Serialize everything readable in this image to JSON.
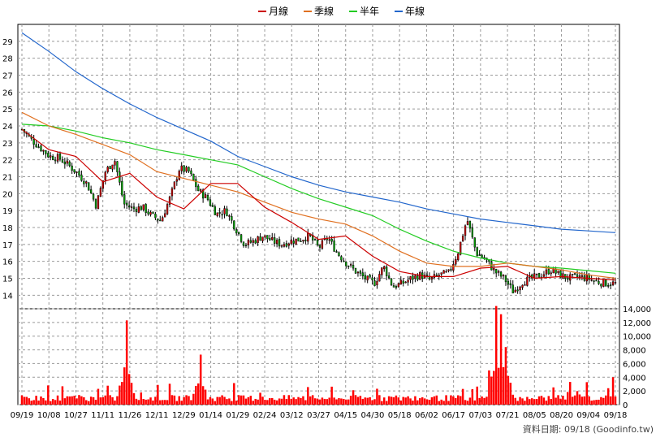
{
  "chart_data": {
    "type": "line",
    "legend": [
      {
        "name": "月線",
        "color": "#cc0000"
      },
      {
        "name": "季線",
        "color": "#e07020"
      },
      {
        "name": "半年",
        "color": "#22cc22"
      },
      {
        "name": "年線",
        "color": "#2266cc"
      }
    ],
    "legend_placement": "top-center",
    "grid": true,
    "price_axis": {
      "ticks": [
        14,
        15,
        16,
        17,
        18,
        19,
        20,
        21,
        22,
        23,
        24,
        25,
        26,
        27,
        28,
        29
      ],
      "ylim": [
        13.2,
        30.0
      ]
    },
    "volume_axis": {
      "ticks": [
        "0",
        "2,000",
        "4,000",
        "6,000",
        "8,000",
        "10,000",
        "12,000",
        "14,000"
      ],
      "ylim": [
        0,
        14000
      ]
    },
    "x_tick_labels": [
      "09/19",
      "10/08",
      "10/27",
      "11/11",
      "11/26",
      "12/11",
      "12/29",
      "01/14",
      "01/29",
      "02/24",
      "03/12",
      "03/27",
      "04/15",
      "04/30",
      "05/18",
      "06/02",
      "06/17",
      "07/03",
      "07/21",
      "08/05",
      "08/20",
      "09/04",
      "09/18"
    ],
    "series": [
      {
        "name": "年線",
        "color": "#2266cc",
        "values": [
          29.5,
          28.4,
          27.2,
          26.2,
          25.3,
          24.5,
          23.8,
          23.1,
          22.2,
          21.6,
          21.0,
          20.5,
          20.1,
          19.8,
          19.5,
          19.1,
          18.8,
          18.5,
          18.3,
          18.1,
          17.9,
          17.8,
          17.7
        ]
      },
      {
        "name": "半年",
        "color": "#22cc22",
        "values": [
          24.1,
          24.0,
          23.7,
          23.3,
          23.0,
          22.6,
          22.3,
          22.0,
          21.7,
          21.0,
          20.3,
          19.7,
          19.2,
          18.7,
          17.9,
          17.2,
          16.6,
          16.2,
          15.9,
          15.7,
          15.6,
          15.45,
          15.3
        ]
      },
      {
        "name": "季線",
        "color": "#e07020",
        "values": [
          24.8,
          24.0,
          23.5,
          22.9,
          22.3,
          21.3,
          20.9,
          20.5,
          20.1,
          19.5,
          18.9,
          18.5,
          18.2,
          17.5,
          16.6,
          15.9,
          15.7,
          15.7,
          15.9,
          15.7,
          15.5,
          15.2,
          15.0
        ]
      },
      {
        "name": "月線",
        "color": "#cc0000",
        "values": [
          23.8,
          22.6,
          22.2,
          20.7,
          21.2,
          19.8,
          19.1,
          20.6,
          20.6,
          19.2,
          18.3,
          17.3,
          17.5,
          16.3,
          15.4,
          15.1,
          15.1,
          15.6,
          15.7,
          15.0,
          15.1,
          15.0,
          14.9
        ]
      }
    ],
    "price_path": [
      23.8,
      23.2,
      22.7,
      22.2,
      22.1,
      21.7,
      21.2,
      20.6,
      19.3,
      21.3,
      22.0,
      19.4,
      19.1,
      19.2,
      18.7,
      18.4,
      19.8,
      21.5,
      21.3,
      20.2,
      19.7,
      18.8,
      19.0,
      18.0,
      17.0,
      17.2,
      17.5,
      17.2,
      17.0,
      17.2,
      17.3,
      17.5,
      16.8,
      17.4,
      16.5,
      15.9,
      15.4,
      15.0,
      14.7,
      15.7,
      14.5,
      14.7,
      15.0,
      15.2,
      14.9,
      15.2,
      15.3,
      16.5,
      18.5,
      16.5,
      16.1,
      15.4,
      15.0,
      14.2,
      14.8,
      15.0,
      15.2,
      15.5,
      15.2,
      15.0,
      15.1,
      15.0,
      14.8,
      14.7,
      14.7
    ],
    "volume_peaks": [
      {
        "pos": 0.176,
        "value": 12300
      },
      {
        "pos": 0.3,
        "value": 7300
      },
      {
        "pos": 0.787,
        "value": 5000
      },
      {
        "pos": 0.8,
        "value": 14400
      },
      {
        "pos": 0.807,
        "value": 13200
      },
      {
        "pos": 0.816,
        "value": 8400
      },
      {
        "pos": 0.997,
        "value": 4000
      }
    ],
    "footer": "資料日期: 09/18 (Goodinfo.tw)"
  }
}
